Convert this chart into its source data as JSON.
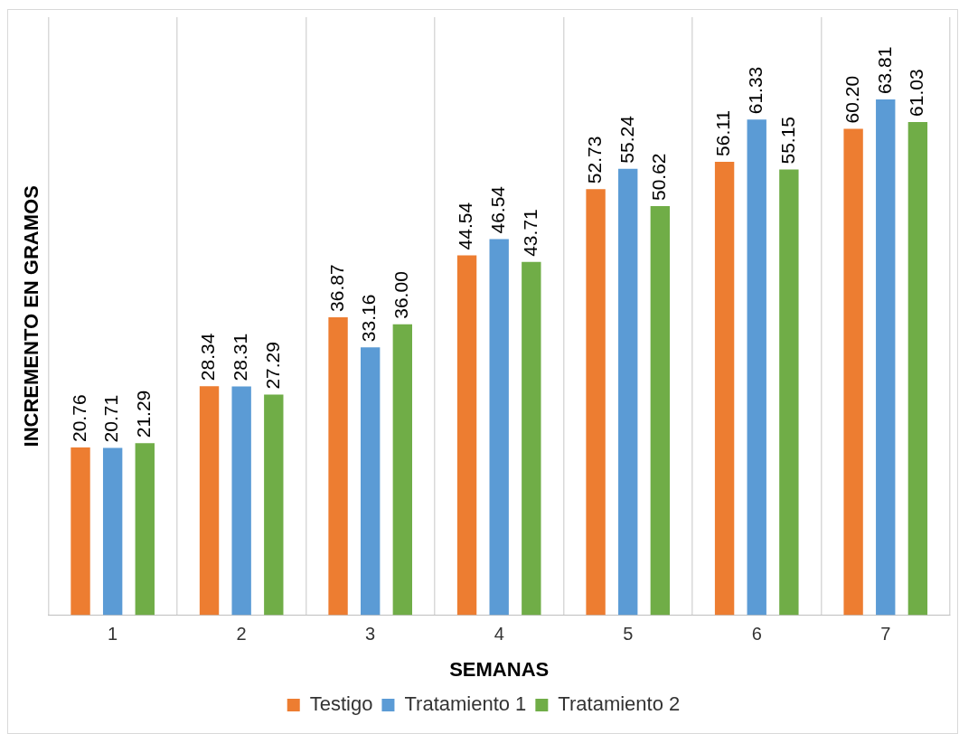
{
  "chart_data": {
    "type": "bar",
    "xlabel": "SEMANAS",
    "ylabel": "INCREMENTO EN GRAMOS",
    "categories": [
      "1",
      "2",
      "3",
      "4",
      "5",
      "6",
      "7"
    ],
    "series": [
      {
        "name": "Testigo",
        "color": "#ed7d31",
        "values": [
          20.76,
          28.34,
          36.87,
          44.54,
          52.73,
          56.11,
          60.2
        ],
        "value_labels": [
          "20.76",
          "28.34",
          "36.87",
          "44.54",
          "52.73",
          "56.11",
          "60.20"
        ]
      },
      {
        "name": "Tratamiento 1",
        "color": "#5b9bd5",
        "values": [
          20.71,
          28.31,
          33.16,
          46.54,
          55.24,
          61.33,
          63.81
        ],
        "value_labels": [
          "20.71",
          "28.31",
          "33.16",
          "46.54",
          "55.24",
          "61.33",
          "63.81"
        ]
      },
      {
        "name": "Tratamiento 2",
        "color": "#70ad47",
        "values": [
          21.29,
          27.29,
          36.0,
          43.71,
          50.62,
          55.15,
          61.03
        ],
        "value_labels": [
          "21.29",
          "27.29",
          "36.00",
          "43.71",
          "50.62",
          "55.15",
          "61.03"
        ]
      }
    ],
    "ylim": [
      0,
      74
    ],
    "grid": "x",
    "legend": "bottom",
    "tick_labels": "x"
  }
}
